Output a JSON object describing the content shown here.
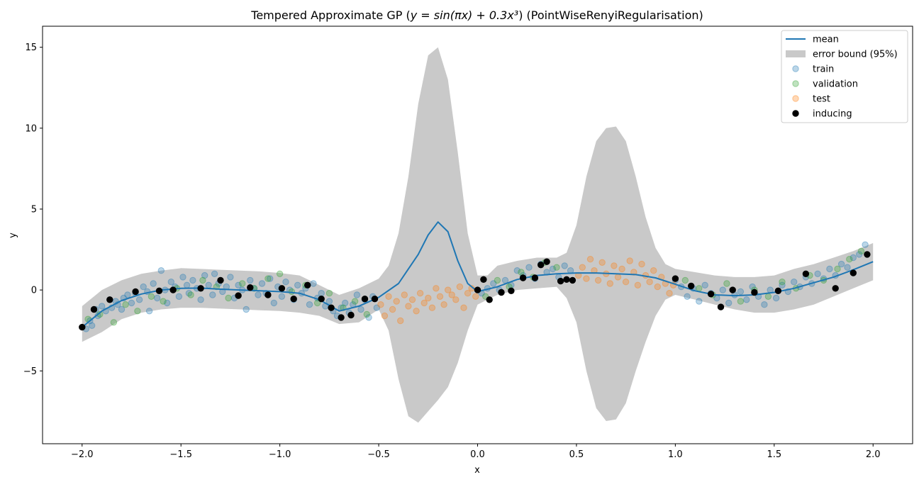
{
  "chart_data": {
    "type": "scatter",
    "title_prefix": "Tempered Approximate GP (",
    "title_math": "y = sin(πx) + 0.3x³",
    "title_suffix": ") (PointWiseRenyiRegularisation)",
    "xlabel": "x",
    "ylabel": "y",
    "xlim": [
      -2.2,
      2.2
    ],
    "ylim": [
      -9.5,
      16.3
    ],
    "xticks": [
      -2.0,
      -1.5,
      -1.0,
      -0.5,
      0.0,
      0.5,
      1.0,
      1.5,
      2.0
    ],
    "xtick_labels": [
      "−2.0",
      "−1.5",
      "−1.0",
      "−0.5",
      "0.0",
      "0.5",
      "1.0",
      "1.5",
      "2.0"
    ],
    "yticks": [
      -5,
      0,
      5,
      10,
      15
    ],
    "ytick_labels": [
      "−5",
      "0",
      "5",
      "10",
      "15"
    ],
    "grid": false,
    "legend_position": "top-right",
    "legend": [
      {
        "label": "mean",
        "kind": "line",
        "color": "#1f77b4"
      },
      {
        "label": "error bound (95%)",
        "kind": "band",
        "color": "#c9c9c9"
      },
      {
        "label": "train",
        "kind": "marker",
        "color": "#1f77b4",
        "alpha": 0.3
      },
      {
        "label": "validation",
        "kind": "marker",
        "color": "#2ca02c",
        "alpha": 0.3
      },
      {
        "label": "test",
        "kind": "marker",
        "color": "#ff7f0e",
        "alpha": 0.3
      },
      {
        "label": "inducing",
        "kind": "marker",
        "color": "#000000",
        "alpha": 1.0
      }
    ],
    "mean": {
      "x": [
        -2.0,
        -1.9,
        -1.8,
        -1.7,
        -1.6,
        -1.5,
        -1.4,
        -1.3,
        -1.2,
        -1.1,
        -1.0,
        -0.9,
        -0.8,
        -0.7,
        -0.6,
        -0.5,
        -0.4,
        -0.3,
        -0.25,
        -0.2,
        -0.15,
        -0.1,
        -0.05,
        0.0,
        0.1,
        0.2,
        0.3,
        0.4,
        0.5,
        0.6,
        0.7,
        0.8,
        0.9,
        1.0,
        1.1,
        1.2,
        1.3,
        1.4,
        1.5,
        1.6,
        1.7,
        1.8,
        1.9,
        2.0
      ],
      "y": [
        -2.3,
        -1.3,
        -0.65,
        -0.25,
        0.0,
        0.1,
        0.12,
        0.05,
        0.0,
        -0.05,
        -0.1,
        -0.2,
        -0.6,
        -1.3,
        -1.0,
        -0.45,
        0.4,
        2.2,
        3.4,
        4.2,
        3.6,
        1.8,
        0.4,
        -0.1,
        0.2,
        0.65,
        0.9,
        1.0,
        1.05,
        1.05,
        1.0,
        0.95,
        0.75,
        0.35,
        -0.05,
        -0.3,
        -0.35,
        -0.3,
        -0.15,
        0.1,
        0.45,
        0.8,
        1.25,
        1.75
      ]
    },
    "band": {
      "x": [
        -2.0,
        -1.9,
        -1.8,
        -1.7,
        -1.6,
        -1.5,
        -1.4,
        -1.3,
        -1.2,
        -1.1,
        -1.0,
        -0.9,
        -0.8,
        -0.7,
        -0.6,
        -0.55,
        -0.5,
        -0.45,
        -0.4,
        -0.35,
        -0.3,
        -0.25,
        -0.2,
        -0.15,
        -0.1,
        -0.05,
        0.0,
        0.05,
        0.1,
        0.2,
        0.3,
        0.4,
        0.45,
        0.5,
        0.55,
        0.6,
        0.65,
        0.7,
        0.75,
        0.8,
        0.85,
        0.9,
        0.95,
        1.0,
        1.1,
        1.2,
        1.3,
        1.4,
        1.5,
        1.6,
        1.7,
        1.8,
        1.9,
        2.0
      ],
      "upper": [
        -1.0,
        0.0,
        0.6,
        1.0,
        1.2,
        1.35,
        1.3,
        1.25,
        1.2,
        1.15,
        1.05,
        0.9,
        0.3,
        -0.3,
        0.1,
        0.4,
        0.7,
        1.5,
        3.5,
        7.0,
        11.5,
        14.5,
        15.0,
        13.0,
        8.5,
        3.5,
        0.9,
        0.9,
        1.5,
        1.8,
        2.0,
        2.0,
        2.3,
        4.0,
        7.0,
        9.2,
        10.0,
        10.1,
        9.2,
        7.0,
        4.5,
        2.6,
        1.6,
        1.3,
        1.1,
        0.9,
        0.8,
        0.8,
        0.9,
        1.3,
        1.6,
        2.0,
        2.4,
        2.9
      ],
      "lower": [
        -3.2,
        -2.6,
        -1.8,
        -1.4,
        -1.2,
        -1.1,
        -1.1,
        -1.15,
        -1.2,
        -1.25,
        -1.3,
        -1.4,
        -1.6,
        -2.1,
        -2.0,
        -1.6,
        -1.2,
        -2.5,
        -5.5,
        -7.8,
        -8.2,
        -7.5,
        -6.8,
        -6.0,
        -4.5,
        -2.5,
        -0.9,
        -0.6,
        -0.3,
        0.0,
        0.1,
        0.2,
        -0.5,
        -2.0,
        -5.0,
        -7.3,
        -8.1,
        -8.0,
        -7.0,
        -5.0,
        -3.2,
        -1.6,
        -0.6,
        -0.3,
        -0.6,
        -0.9,
        -1.2,
        -1.4,
        -1.4,
        -1.2,
        -0.9,
        -0.4,
        0.1,
        0.6
      ]
    },
    "series": [
      {
        "name": "train",
        "color": "#1f77b4",
        "alpha": 0.3,
        "x": [
          -1.98,
          -1.96,
          -1.95,
          -1.93,
          -1.92,
          -1.9,
          -1.88,
          -1.86,
          -1.85,
          -1.83,
          -1.82,
          -1.8,
          -1.79,
          -1.77,
          -1.75,
          -1.73,
          -1.71,
          -1.69,
          -1.67,
          -1.66,
          -1.64,
          -1.62,
          -1.6,
          -1.58,
          -1.57,
          -1.55,
          -1.53,
          -1.51,
          -1.49,
          -1.47,
          -1.46,
          -1.44,
          -1.42,
          -1.4,
          -1.38,
          -1.36,
          -1.34,
          -1.33,
          -1.31,
          -1.29,
          -1.27,
          -1.25,
          -1.23,
          -1.21,
          -1.19,
          -1.17,
          -1.15,
          -1.13,
          -1.11,
          -1.09,
          -1.07,
          -1.05,
          -1.03,
          -1.01,
          -0.99,
          -0.97,
          -0.95,
          -0.93,
          -0.91,
          -0.89,
          -0.87,
          -0.85,
          -0.83,
          -0.81,
          -0.79,
          -0.77,
          -0.75,
          -0.73,
          -0.71,
          -0.69,
          -0.67,
          -0.65,
          -0.63,
          -0.61,
          -0.59,
          -0.57,
          -0.55,
          -0.53,
          -0.51,
          0.02,
          0.05,
          0.08,
          0.11,
          0.14,
          0.17,
          0.2,
          0.23,
          0.26,
          0.29,
          0.32,
          0.35,
          0.38,
          0.41,
          0.44,
          0.47,
          1.0,
          1.03,
          1.06,
          1.09,
          1.12,
          1.15,
          1.18,
          1.21,
          1.24,
          1.27,
          1.3,
          1.33,
          1.36,
          1.39,
          1.42,
          1.45,
          1.48,
          1.51,
          1.54,
          1.57,
          1.6,
          1.63,
          1.66,
          1.69,
          1.72,
          1.75,
          1.78,
          1.81,
          1.84,
          1.87,
          1.9,
          1.93,
          1.96
        ],
        "y": [
          -2.4,
          -1.9,
          -2.2,
          -1.2,
          -1.6,
          -1.0,
          -1.3,
          -0.6,
          -1.1,
          -0.7,
          -0.9,
          -1.2,
          -0.5,
          -0.3,
          -0.8,
          -0.2,
          -0.6,
          0.2,
          -0.1,
          -1.3,
          0.4,
          -0.5,
          1.2,
          0.0,
          -0.8,
          0.5,
          0.2,
          -0.4,
          0.8,
          0.3,
          -0.2,
          0.6,
          0.1,
          -0.6,
          0.9,
          0.3,
          -0.3,
          1.0,
          0.4,
          -0.1,
          0.2,
          0.8,
          -0.5,
          0.3,
          0.0,
          -1.2,
          0.6,
          0.1,
          -0.3,
          0.4,
          -0.2,
          0.7,
          -0.8,
          0.2,
          -0.4,
          0.5,
          0.0,
          -0.6,
          0.3,
          -0.2,
          0.1,
          -0.9,
          0.4,
          -0.5,
          -0.2,
          -1.0,
          -0.7,
          -1.3,
          -1.6,
          -1.1,
          -0.8,
          -1.4,
          -0.9,
          -0.3,
          -1.2,
          -0.6,
          -1.7,
          -0.4,
          -1.1,
          -0.2,
          0.1,
          0.4,
          0.0,
          0.6,
          0.3,
          1.2,
          0.9,
          1.4,
          0.7,
          1.6,
          1.1,
          1.3,
          0.8,
          1.5,
          1.2,
          0.6,
          0.2,
          -0.4,
          0.1,
          -0.7,
          0.3,
          -0.2,
          -0.5,
          0.0,
          -0.8,
          -0.3,
          -0.1,
          -0.6,
          0.2,
          -0.4,
          -0.9,
          0.0,
          -0.5,
          0.3,
          -0.1,
          0.5,
          0.2,
          0.8,
          0.4,
          1.0,
          0.7,
          1.3,
          0.9,
          1.6,
          1.4,
          2.0,
          2.2,
          2.8
        ]
      },
      {
        "name": "validation",
        "color": "#2ca02c",
        "alpha": 0.3,
        "x": [
          -1.97,
          -1.91,
          -1.84,
          -1.78,
          -1.72,
          -1.65,
          -1.59,
          -1.52,
          -1.45,
          -1.39,
          -1.32,
          -1.26,
          -1.19,
          -1.13,
          -1.06,
          -1.0,
          -0.94,
          -0.87,
          -0.81,
          -0.75,
          -0.68,
          -0.62,
          -0.56,
          0.04,
          0.1,
          0.16,
          0.22,
          0.28,
          0.34,
          0.4,
          1.05,
          1.12,
          1.19,
          1.26,
          1.33,
          1.4,
          1.47,
          1.54,
          1.61,
          1.68,
          1.75,
          1.82,
          1.88,
          1.94
        ],
        "y": [
          -1.8,
          -1.5,
          -2.0,
          -0.9,
          -1.3,
          -0.4,
          -0.7,
          0.1,
          -0.3,
          0.6,
          0.2,
          -0.5,
          0.4,
          0.1,
          0.7,
          1.0,
          -0.1,
          0.3,
          -0.8,
          -0.2,
          -1.1,
          -0.7,
          -1.5,
          -0.4,
          0.6,
          0.2,
          1.1,
          0.8,
          1.7,
          1.4,
          0.6,
          0.1,
          -0.3,
          0.4,
          -0.7,
          0.0,
          -0.4,
          0.5,
          0.1,
          0.9,
          0.6,
          1.3,
          1.9,
          2.4
        ]
      },
      {
        "name": "test",
        "color": "#ff7f0e",
        "alpha": 0.3,
        "x": [
          -0.49,
          -0.47,
          -0.45,
          -0.43,
          -0.41,
          -0.39,
          -0.37,
          -0.35,
          -0.33,
          -0.31,
          -0.29,
          -0.27,
          -0.25,
          -0.23,
          -0.21,
          -0.19,
          -0.17,
          -0.15,
          -0.13,
          -0.11,
          -0.09,
          -0.07,
          -0.05,
          -0.03,
          -0.01,
          0.51,
          0.53,
          0.55,
          0.57,
          0.59,
          0.61,
          0.63,
          0.65,
          0.67,
          0.69,
          0.71,
          0.73,
          0.75,
          0.77,
          0.79,
          0.81,
          0.83,
          0.85,
          0.87,
          0.89,
          0.91,
          0.93,
          0.95,
          0.97,
          0.99
        ],
        "y": [
          -0.9,
          -1.6,
          -0.4,
          -1.2,
          -0.7,
          -1.9,
          -0.3,
          -1.0,
          -0.6,
          -1.3,
          -0.2,
          -0.8,
          -0.5,
          -1.1,
          0.1,
          -0.4,
          -0.9,
          0.0,
          -0.3,
          -0.6,
          0.2,
          -1.1,
          -0.2,
          0.1,
          -0.4,
          0.9,
          1.4,
          0.7,
          1.9,
          1.2,
          0.6,
          1.7,
          1.0,
          0.4,
          1.5,
          0.8,
          1.3,
          0.5,
          1.8,
          1.1,
          0.3,
          1.6,
          0.9,
          0.5,
          1.2,
          0.2,
          0.8,
          0.4,
          -0.2,
          0.3
        ]
      },
      {
        "name": "inducing",
        "color": "#000000",
        "alpha": 1.0,
        "x": [
          -2.0,
          -1.94,
          -1.86,
          -1.73,
          -1.61,
          -1.54,
          -1.4,
          -1.3,
          -1.21,
          -1.15,
          -1.06,
          -0.99,
          -0.93,
          -0.86,
          -0.79,
          -0.74,
          -0.69,
          -0.64,
          -0.57,
          -0.52,
          0.0,
          0.03,
          0.06,
          0.12,
          0.17,
          0.23,
          0.29,
          0.32,
          0.35,
          0.42,
          0.45,
          0.48,
          1.0,
          1.08,
          1.18,
          1.23,
          1.29,
          1.4,
          1.52,
          1.66,
          1.81,
          1.9,
          1.97
        ],
        "y": [
          -2.3,
          -1.2,
          -0.6,
          -0.1,
          -0.05,
          0.0,
          0.1,
          0.6,
          -0.35,
          0.15,
          -0.3,
          0.1,
          -0.55,
          0.3,
          -0.55,
          -1.1,
          -1.7,
          -1.55,
          -0.55,
          -0.55,
          0.0,
          0.65,
          -0.6,
          -0.15,
          -0.05,
          0.75,
          0.75,
          1.55,
          1.75,
          0.55,
          0.65,
          0.6,
          0.7,
          0.25,
          -0.25,
          -1.05,
          0.0,
          -0.15,
          -0.05,
          1.0,
          0.1,
          1.05,
          2.2
        ]
      }
    ]
  }
}
